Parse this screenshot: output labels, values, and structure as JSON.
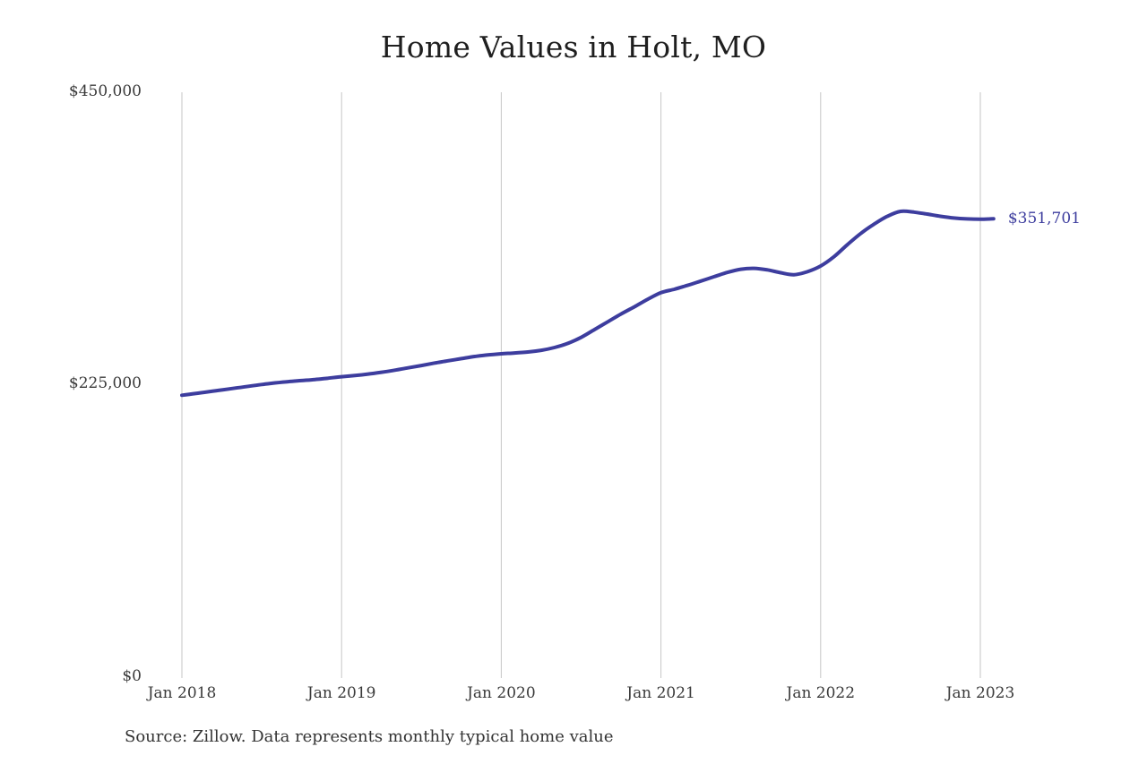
{
  "page": {
    "background": "#ffffff"
  },
  "chart_data": {
    "type": "line",
    "title": "Home Values in Holt, MO",
    "series_name": "Monthly typical home value",
    "x": [
      "2018-01",
      "2018-02",
      "2018-03",
      "2018-04",
      "2018-05",
      "2018-06",
      "2018-07",
      "2018-08",
      "2018-09",
      "2018-10",
      "2018-11",
      "2018-12",
      "2019-01",
      "2019-02",
      "2019-03",
      "2019-04",
      "2019-05",
      "2019-06",
      "2019-07",
      "2019-08",
      "2019-09",
      "2019-10",
      "2019-11",
      "2019-12",
      "2020-01",
      "2020-02",
      "2020-03",
      "2020-04",
      "2020-05",
      "2020-06",
      "2020-07",
      "2020-08",
      "2020-09",
      "2020-10",
      "2020-11",
      "2020-12",
      "2021-01",
      "2021-02",
      "2021-03",
      "2021-04",
      "2021-05",
      "2021-06",
      "2021-07",
      "2021-08",
      "2021-09",
      "2021-10",
      "2021-11",
      "2021-12",
      "2022-01",
      "2022-02",
      "2022-03",
      "2022-04",
      "2022-05",
      "2022-06",
      "2022-07",
      "2022-08",
      "2022-09",
      "2022-10",
      "2022-11",
      "2022-12",
      "2023-01",
      "2023-02"
    ],
    "values": [
      216000,
      217300,
      218700,
      220100,
      221500,
      222900,
      224300,
      225500,
      226500,
      227300,
      228100,
      229200,
      230300,
      231200,
      232300,
      233700,
      235300,
      237100,
      238900,
      240800,
      242500,
      244200,
      245800,
      247000,
      247900,
      248500,
      249300,
      250600,
      252700,
      255900,
      260500,
      266500,
      272500,
      278500,
      284000,
      289800,
      294900,
      297500,
      300500,
      303800,
      307200,
      310500,
      312900,
      313600,
      312400,
      310200,
      308700,
      311000,
      315400,
      322500,
      331700,
      340300,
      347500,
      353500,
      357400,
      356800,
      355300,
      353600,
      352300,
      351600,
      351400,
      351701
    ],
    "ylim": [
      0,
      450000
    ],
    "y_ticks": [
      {
        "value": 0,
        "label": "$0"
      },
      {
        "value": 225000,
        "label": "$225,000"
      },
      {
        "value": 450000,
        "label": "$450,000"
      }
    ],
    "x_ticks": [
      {
        "month_index": 0,
        "label": "Jan 2018"
      },
      {
        "month_index": 12,
        "label": "Jan 2019"
      },
      {
        "month_index": 24,
        "label": "Jan 2020"
      },
      {
        "month_index": 36,
        "label": "Jan 2021"
      },
      {
        "month_index": 48,
        "label": "Jan 2022"
      },
      {
        "month_index": 60,
        "label": "Jan 2023"
      }
    ],
    "end_label": "$351,701",
    "grid": "vertical-only",
    "legend": "none",
    "colors": {
      "line": "#3d3d9e",
      "grid": "#c6c6c6",
      "axis_text": "#3a3a3a",
      "title_text": "#1f1f1f",
      "end_label_text": "#3d3d9e",
      "source_text": "#333333"
    }
  },
  "source": {
    "text": "Source: Zillow. Data represents monthly typical home value"
  }
}
